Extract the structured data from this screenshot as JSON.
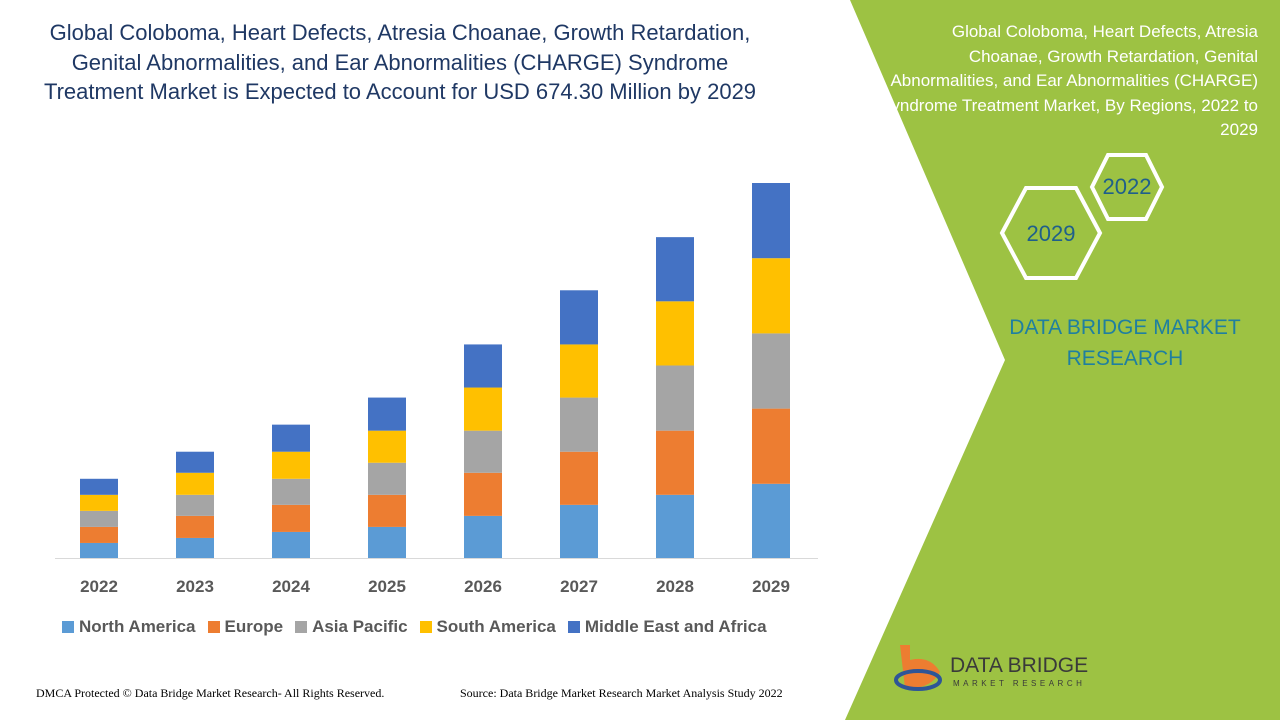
{
  "chart_data": {
    "type": "bar",
    "stacked": true,
    "title": "Global Coloboma, Heart Defects, Atresia Choanae, Growth Retardation, Genital Abnormalities, and Ear Abnormalities (CHARGE) Syndrome Treatment Market is Expected to Account for USD 674.30 Million by 2029",
    "categories": [
      "2022",
      "2023",
      "2024",
      "2025",
      "2026",
      "2027",
      "2028",
      "2029"
    ],
    "series": [
      {
        "name": "North America",
        "color": "#5b9bd5",
        "values": [
          15,
          20,
          26,
          31,
          42,
          53,
          63,
          74
        ]
      },
      {
        "name": "Europe",
        "color": "#ed7d31",
        "values": [
          16,
          22,
          27,
          32,
          43,
          53,
          64,
          75
        ]
      },
      {
        "name": "Asia Pacific",
        "color": "#a5a5a5",
        "values": [
          16,
          21,
          26,
          32,
          42,
          54,
          65,
          75
        ]
      },
      {
        "name": "South America",
        "color": "#ffc000",
        "values": [
          16,
          22,
          27,
          32,
          43,
          53,
          64,
          75
        ]
      },
      {
        "name": "Middle East and Africa",
        "color": "#4472c4",
        "values": [
          16,
          21,
          27,
          33,
          43,
          54,
          64,
          75
        ]
      }
    ],
    "legend": "bottom"
  },
  "side_panel": {
    "title": "Global Coloboma, Heart Defects, Atresia Choanae, Growth Retardation, Genital Abnormalities, and Ear Abnormalities (CHARGE) Syndrome Treatment Market, By Regions, 2022 to 2029",
    "hexagons": [
      "2022",
      "2029"
    ],
    "brand": "DATA BRIDGE MARKET RESEARCH"
  },
  "logo": {
    "name": "DATA BRIDGE",
    "tagline": "MARKET RESEARCH"
  },
  "footer": {
    "left": "DMCA Protected © Data Bridge Market Research- All Rights Reserved.",
    "right": "Source: Data Bridge Market Research Market Analysis Study 2022"
  }
}
